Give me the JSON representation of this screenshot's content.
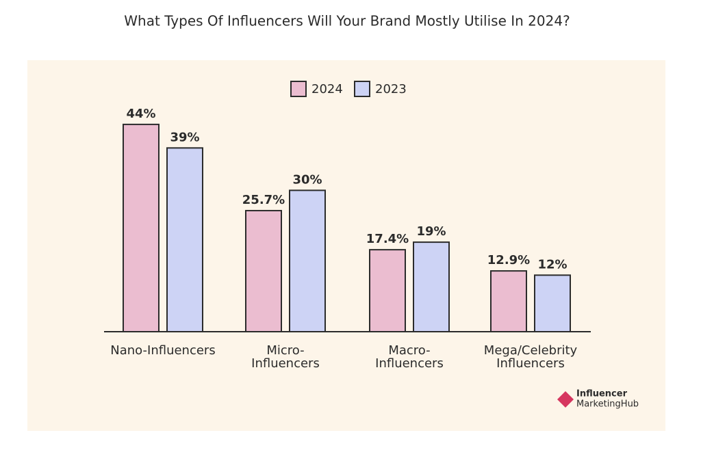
{
  "chart_data": {
    "type": "bar",
    "title": "What Types Of Influencers Will Your Brand Mostly Utilise In 2024?",
    "categories": [
      "Nano-Influencers",
      "Micro-\nInfluencers",
      "Macro-\nInfluencers",
      "Mega/Celebrity\nInfluencers"
    ],
    "series": [
      {
        "name": "2024",
        "color": "#ebbdd0",
        "values": [
          44,
          25.7,
          17.4,
          12.9
        ],
        "value_labels": [
          "44%",
          "25.7%",
          "17.4%",
          "12.9%"
        ]
      },
      {
        "name": "2023",
        "color": "#cdd3f5",
        "values": [
          39,
          30,
          19,
          12
        ],
        "value_labels": [
          "39%",
          "30%",
          "19%",
          "12%"
        ]
      }
    ],
    "ylim": [
      0,
      45
    ],
    "grid": false,
    "legend": "top"
  },
  "logo": {
    "top": "Influencer",
    "bottom": "MarketingHub"
  }
}
